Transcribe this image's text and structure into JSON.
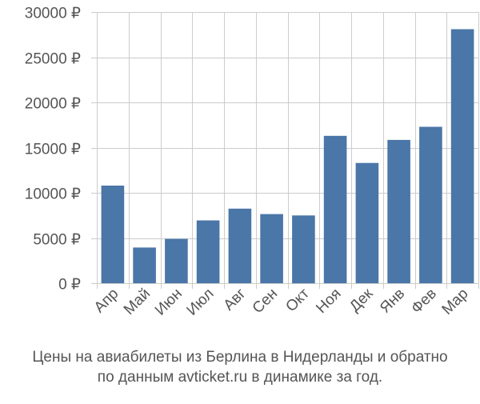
{
  "chart_data": {
    "type": "bar",
    "title": "",
    "xlabel": "",
    "ylabel": "",
    "categories": [
      "Апр",
      "Май",
      "Июн",
      "Июл",
      "Авг",
      "Сен",
      "Окт",
      "Ноя",
      "Дек",
      "Янв",
      "Фев",
      "Мар"
    ],
    "values": [
      10800,
      3950,
      4900,
      6950,
      8250,
      7650,
      7500,
      16300,
      13300,
      15850,
      17300,
      28100
    ],
    "ylim": [
      0,
      30000
    ],
    "yticks": [
      0,
      5000,
      10000,
      15000,
      20000,
      25000,
      30000
    ],
    "ytick_labels": [
      "0 ₽",
      "5000 ₽",
      "10000 ₽",
      "15000 ₽",
      "20000 ₽",
      "25000 ₽",
      "30000 ₽"
    ],
    "grid": true,
    "bar_color": "#4a76a8",
    "grid_color": "#cccccc"
  },
  "caption": {
    "line1": "Цены на авиабилеты из Берлина в Нидерланды и обратно",
    "line2": "по данным avticket.ru в динамике за год."
  }
}
